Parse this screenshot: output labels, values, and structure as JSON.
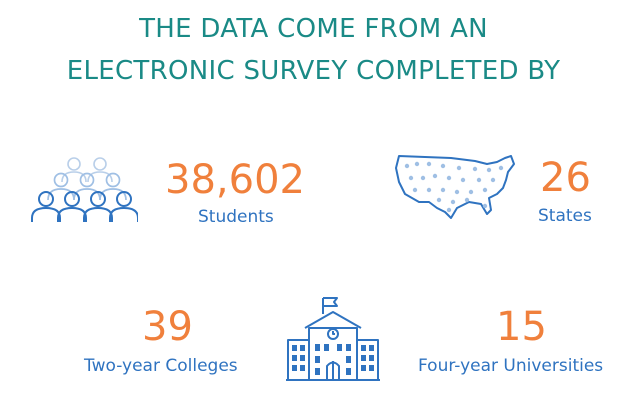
{
  "heading": {
    "line1": "THE DATA COME FROM AN",
    "line2": "ELECTRONIC SURVEY COMPLETED BY"
  },
  "stats": {
    "students": {
      "value": "38,602",
      "label": "Students",
      "icon": "people-group-icon"
    },
    "states": {
      "value": "26",
      "label": "States",
      "icon": "us-map-icon"
    },
    "two_year": {
      "value": "39",
      "label": "Two-year Colleges"
    },
    "four_year": {
      "value": "15",
      "label": "Four-year Universities"
    },
    "school_icon": "school-building-icon"
  },
  "colors": {
    "heading": "#1a8a86",
    "number": "#f0803c",
    "label": "#2f73c0",
    "icon_dark": "#2f73c0",
    "icon_light": "#9fbfe4"
  }
}
